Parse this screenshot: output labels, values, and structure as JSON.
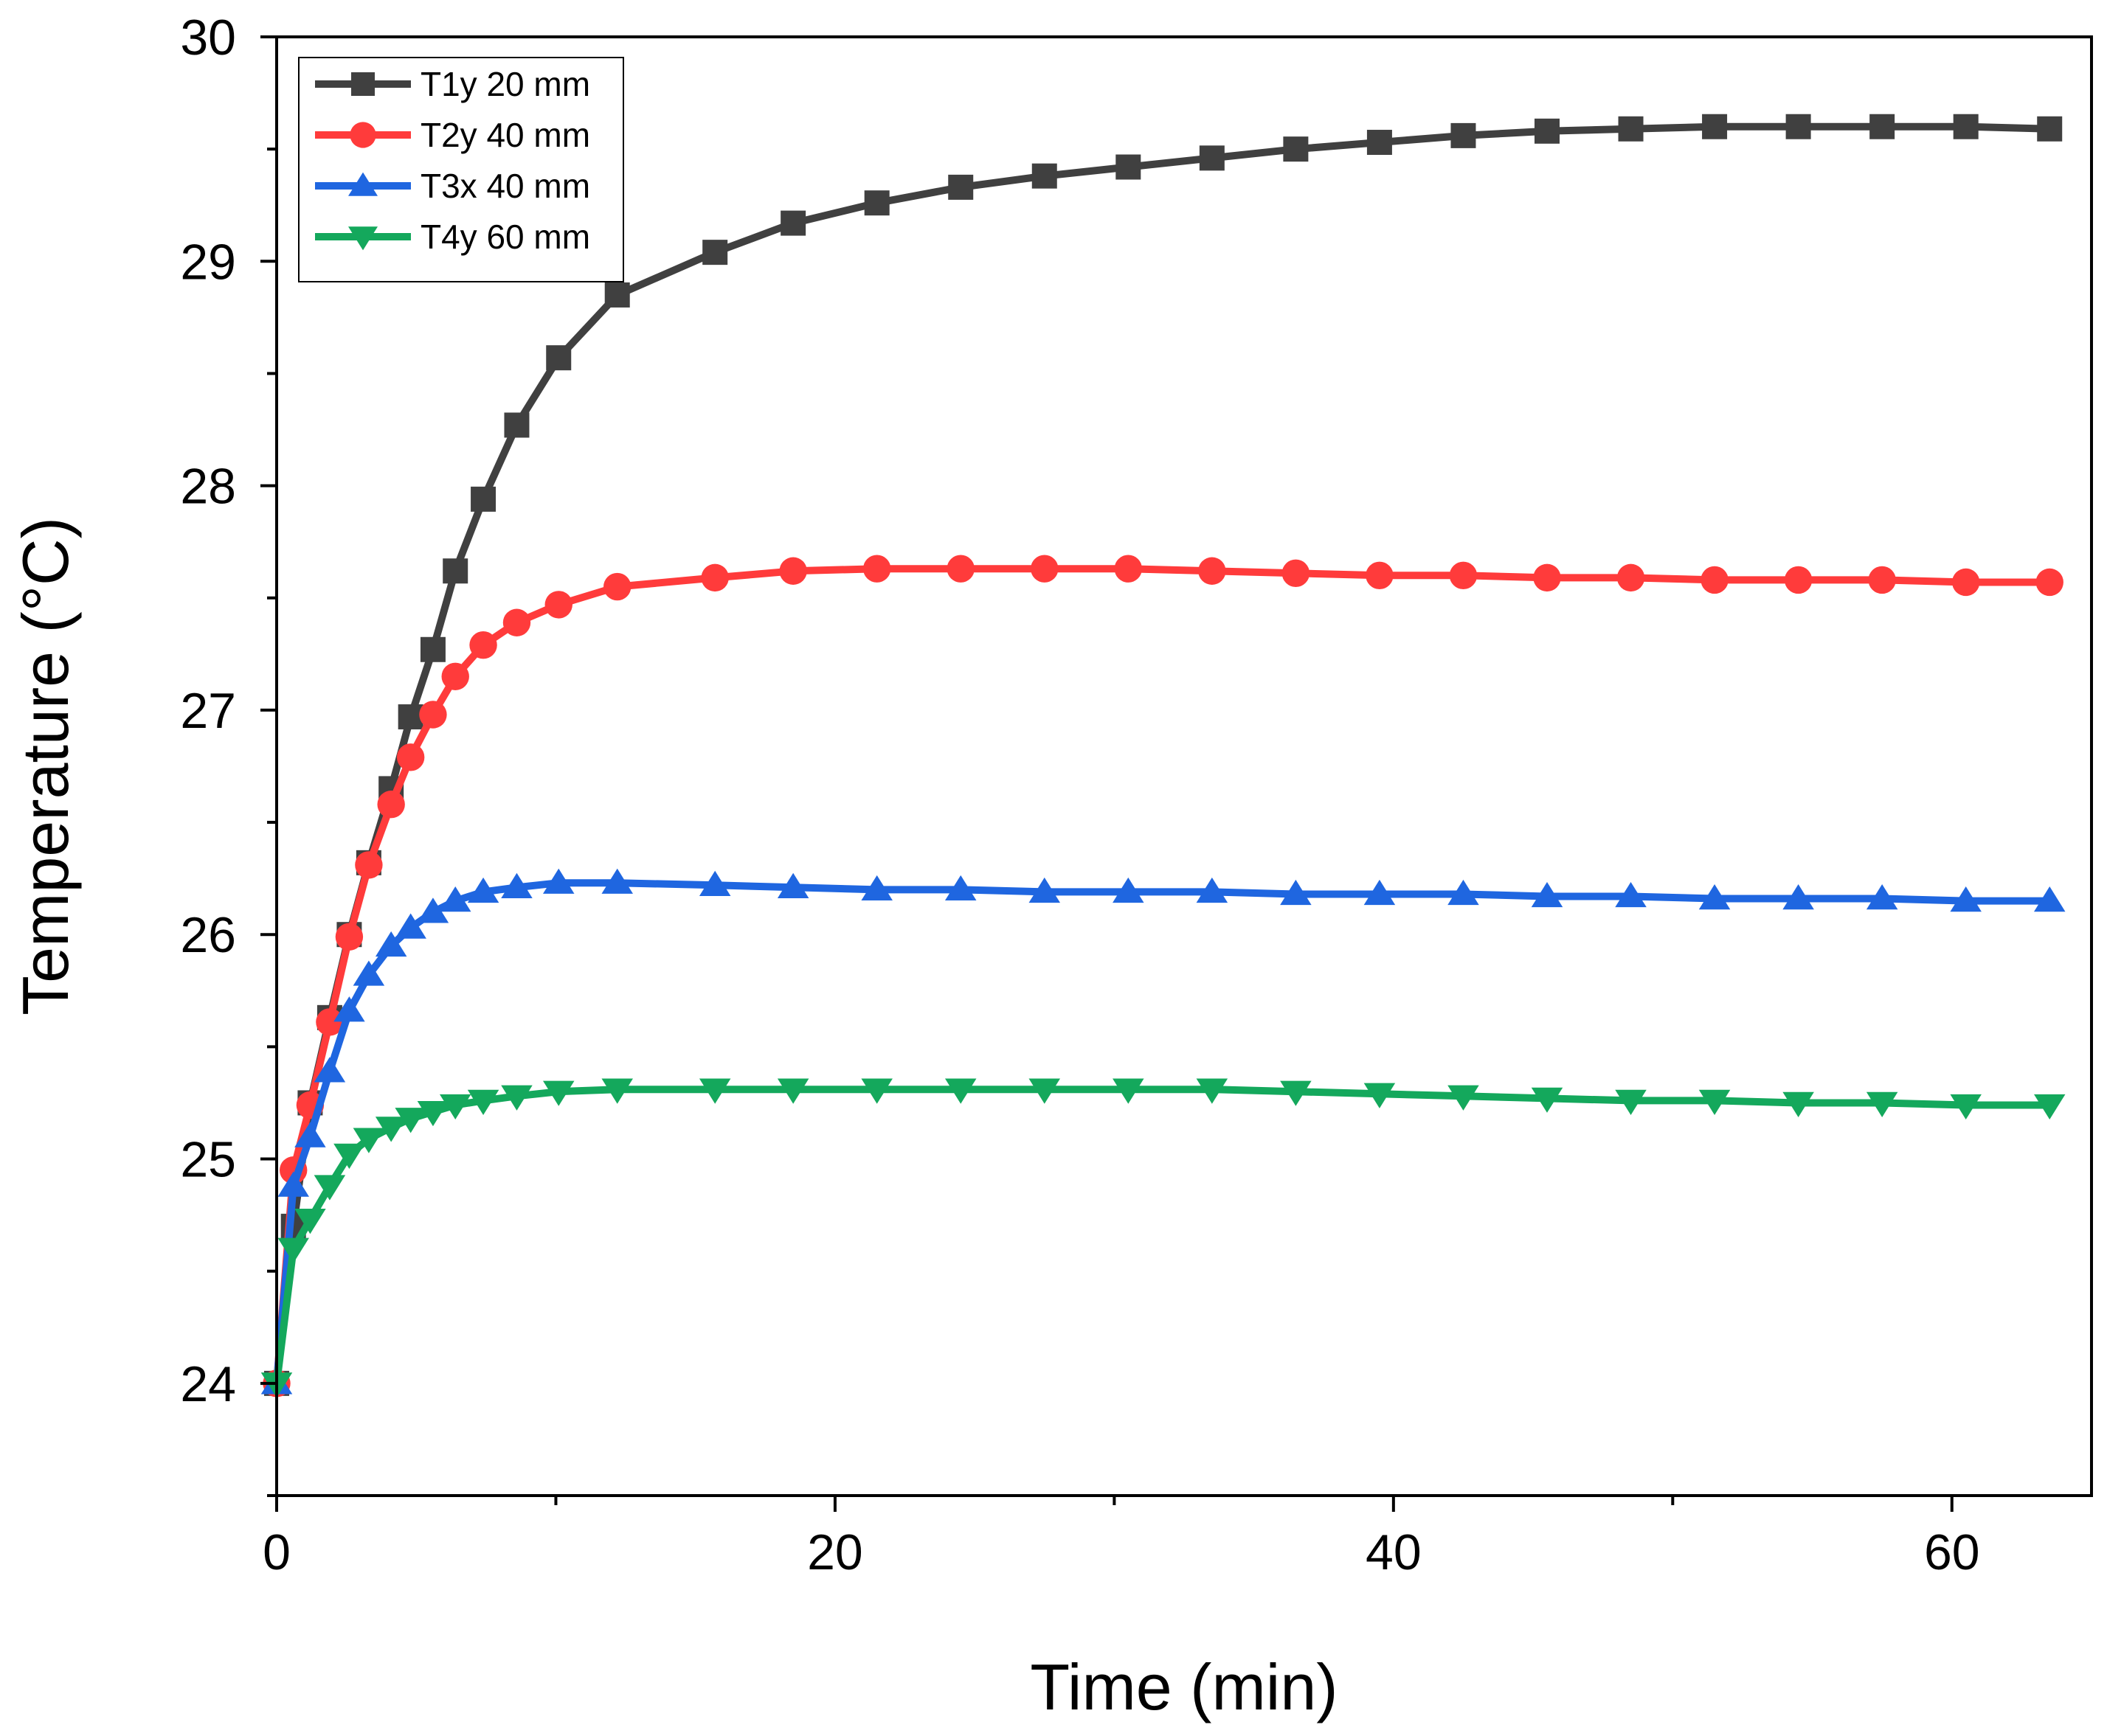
{
  "chart_data": {
    "type": "line",
    "title": "",
    "xlabel": "Time (min)",
    "ylabel": "Temperature (°C)",
    "xlim": [
      0,
      65
    ],
    "ylim": [
      23.5,
      30
    ],
    "xticks": [
      0,
      20,
      40,
      60
    ],
    "xticks_minor": [
      10,
      30,
      50
    ],
    "yticks": [
      24,
      25,
      26,
      27,
      28,
      29,
      30
    ],
    "yticks_minor": [
      23.5,
      24.5,
      25.5,
      26.5,
      27.5,
      28.5,
      29.5
    ],
    "legend_position": "top-left",
    "x": [
      0,
      0.6,
      1.2,
      1.9,
      2.6,
      3.3,
      4.1,
      4.8,
      5.6,
      6.4,
      7.4,
      8.6,
      10.1,
      12.2,
      15.7,
      18.5,
      21.5,
      24.5,
      27.5,
      30.5,
      33.5,
      36.5,
      39.5,
      42.5,
      45.5,
      48.5,
      51.5,
      54.5,
      57.5,
      60.5,
      63.5
    ],
    "series": [
      {
        "name": "T1y 20 mm",
        "color": "#404040",
        "marker": "square",
        "values": [
          24.0,
          24.7,
          25.25,
          25.63,
          26.0,
          26.32,
          26.65,
          26.97,
          27.27,
          27.62,
          27.94,
          28.27,
          28.57,
          28.85,
          29.04,
          29.17,
          29.26,
          29.33,
          29.38,
          29.42,
          29.46,
          29.5,
          29.53,
          29.56,
          29.58,
          29.59,
          29.6,
          29.6,
          29.6,
          29.6,
          29.59
        ]
      },
      {
        "name": "T2y 40 mm",
        "color": "#ff3b3b",
        "marker": "circle",
        "values": [
          24.0,
          24.95,
          25.24,
          25.61,
          25.99,
          26.31,
          26.58,
          26.79,
          26.98,
          27.15,
          27.29,
          27.39,
          27.47,
          27.55,
          27.59,
          27.62,
          27.63,
          27.63,
          27.63,
          27.63,
          27.62,
          27.61,
          27.6,
          27.6,
          27.59,
          27.59,
          27.58,
          27.58,
          27.58,
          27.57,
          27.57
        ]
      },
      {
        "name": "T3x 40 mm",
        "color": "#1f66e0",
        "marker": "triangle-up",
        "values": [
          24.0,
          24.88,
          25.1,
          25.39,
          25.66,
          25.82,
          25.95,
          26.03,
          26.1,
          26.15,
          26.19,
          26.21,
          26.23,
          26.23,
          26.22,
          26.21,
          26.2,
          26.2,
          26.19,
          26.19,
          26.19,
          26.18,
          26.18,
          26.18,
          26.17,
          26.17,
          26.16,
          26.16,
          26.16,
          26.15,
          26.15
        ]
      },
      {
        "name": "T4y 60 mm",
        "color": "#14a85c",
        "marker": "triangle-down",
        "values": [
          24.0,
          24.6,
          24.73,
          24.88,
          25.02,
          25.09,
          25.14,
          25.18,
          25.21,
          25.24,
          25.26,
          25.28,
          25.3,
          25.31,
          25.31,
          25.31,
          25.31,
          25.31,
          25.31,
          25.31,
          25.31,
          25.3,
          25.29,
          25.28,
          25.27,
          25.26,
          25.26,
          25.25,
          25.25,
          25.24,
          25.24
        ]
      }
    ]
  }
}
